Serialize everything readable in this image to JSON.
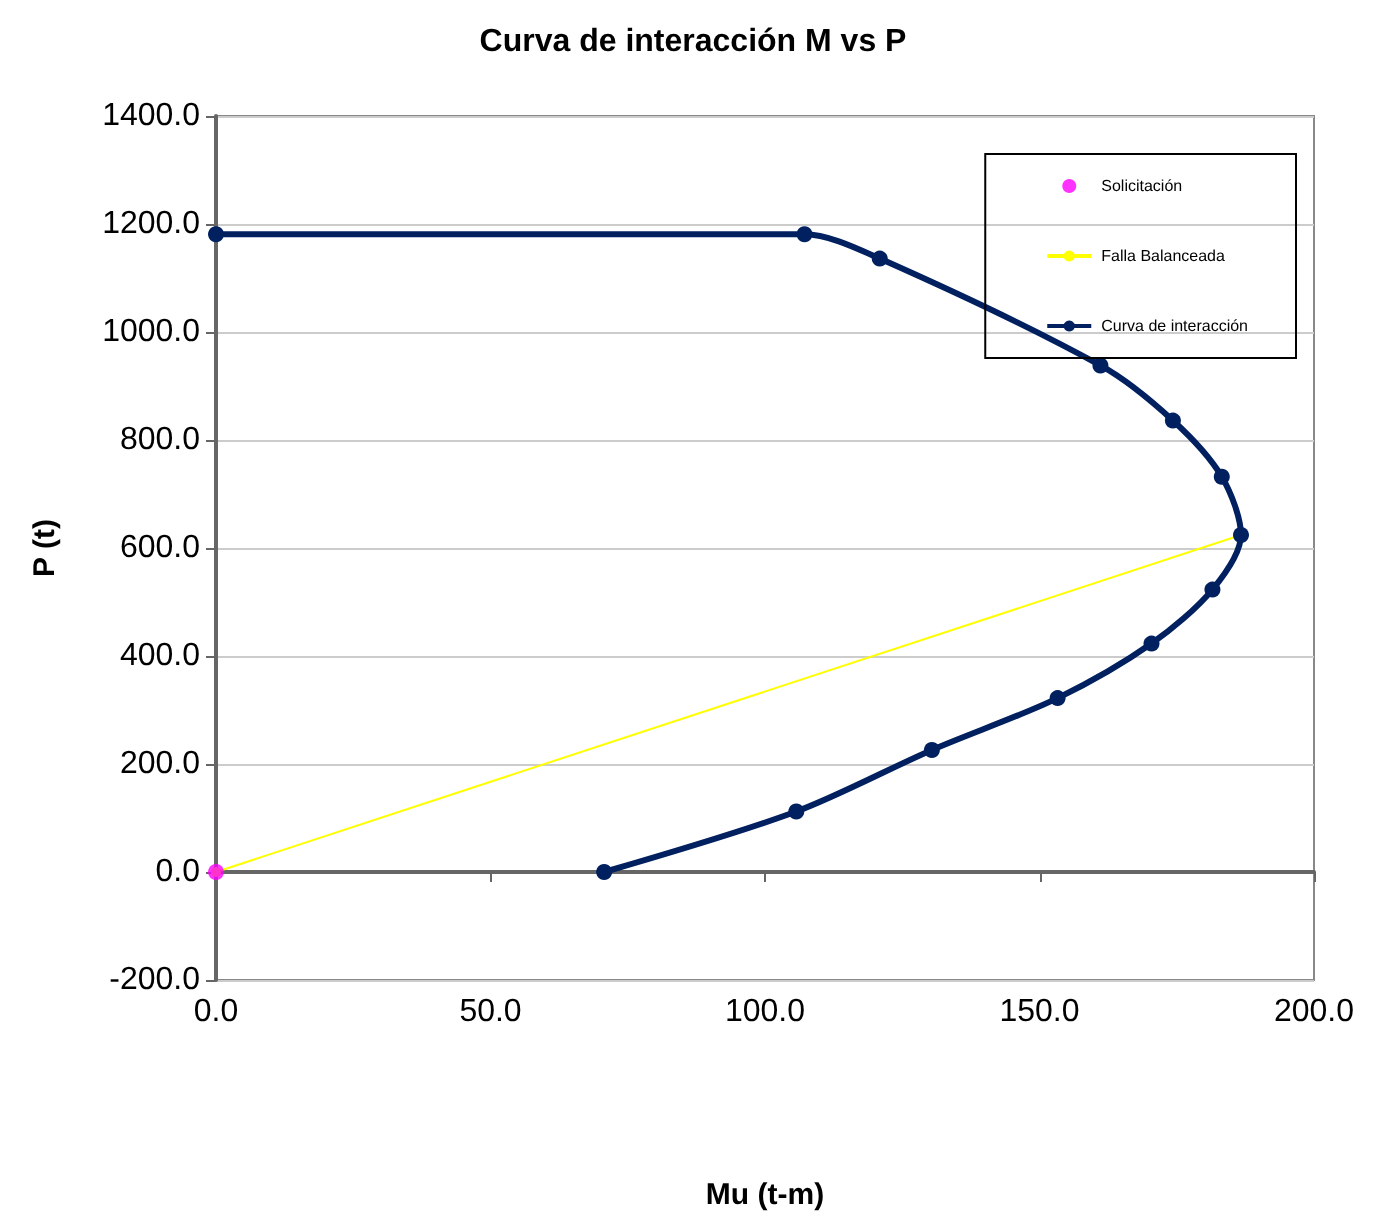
{
  "chart_data": {
    "type": "line",
    "title": "Curva de interacción M vs P",
    "xlabel": "Mu (t-m)",
    "ylabel": "P (t)",
    "xlim": [
      0,
      200
    ],
    "xticks": [
      {
        "value": 0,
        "label": "0.0"
      },
      {
        "value": 50,
        "label": "50.0"
      },
      {
        "value": 100,
        "label": "100.0"
      },
      {
        "value": 150,
        "label": "150.0"
      },
      {
        "value": 200,
        "label": "200.0"
      }
    ],
    "ylim": [
      -200,
      1400
    ],
    "yticks": [
      {
        "value": -200,
        "label": "-200.0"
      },
      {
        "value": 0,
        "label": "0.0"
      },
      {
        "value": 200,
        "label": "200.0"
      },
      {
        "value": 400,
        "label": "400.0"
      },
      {
        "value": 600,
        "label": "600.0"
      },
      {
        "value": 800,
        "label": "800.0"
      },
      {
        "value": 1000,
        "label": "1000.0"
      },
      {
        "value": 1200,
        "label": "1200.0"
      },
      {
        "value": 1400,
        "label": "1400.0"
      }
    ],
    "grid": "y",
    "legend": "top right",
    "marker": "circle",
    "series": [
      {
        "name": "Solicitación",
        "type": "scatter",
        "color": "#ff00ff",
        "x": [
          0
        ],
        "values": [
          0
        ]
      },
      {
        "name": "Falla Balanceada",
        "type": "line",
        "color": "#ffff00",
        "x": [
          0,
          186.7
        ],
        "values": [
          0,
          624
        ]
      },
      {
        "name": "Curva de interacción",
        "color": "#002060",
        "x": [
          0,
          107.2,
          120.9,
          161.1,
          174.3,
          183.2,
          186.7,
          181.5,
          170.4,
          153.3,
          130.4,
          105.7,
          70.7
        ],
        "values": [
          1181,
          1181,
          1136,
          938,
          836,
          732,
          624,
          523,
          423,
          322,
          226,
          112,
          0
        ]
      }
    ]
  }
}
